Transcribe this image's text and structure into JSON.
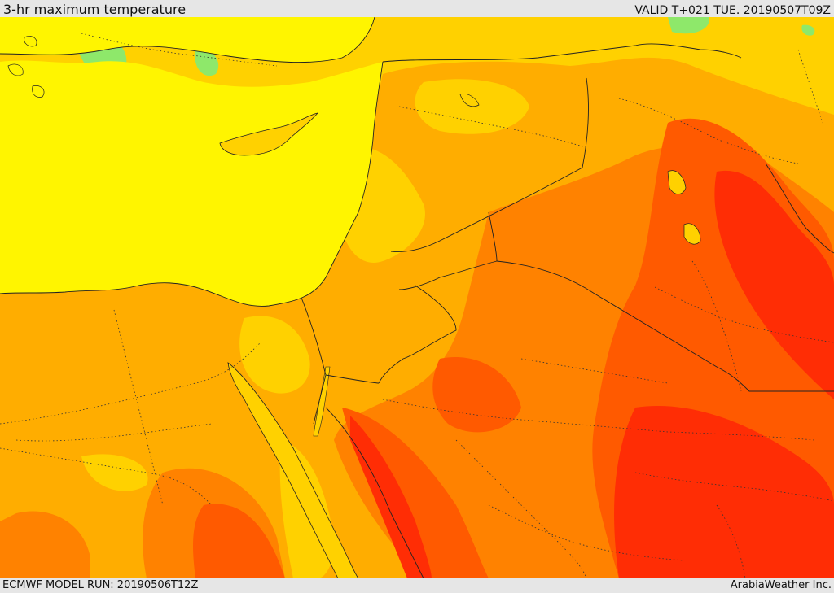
{
  "header": {
    "title": "3-hr maximum temperature",
    "valid": "VALID T+021 TUE. 20190507T09Z"
  },
  "footer": {
    "model_run": "ECMWF MODEL RUN: 20190506T12Z",
    "brand": "ArabiaWeather Inc."
  },
  "map": {
    "field": "temperature",
    "palette": [
      "#8ee86a",
      "#fff500",
      "#ffd100",
      "#ffad00",
      "#ff8200",
      "#ff5a00",
      "#ff2d05"
    ]
  }
}
